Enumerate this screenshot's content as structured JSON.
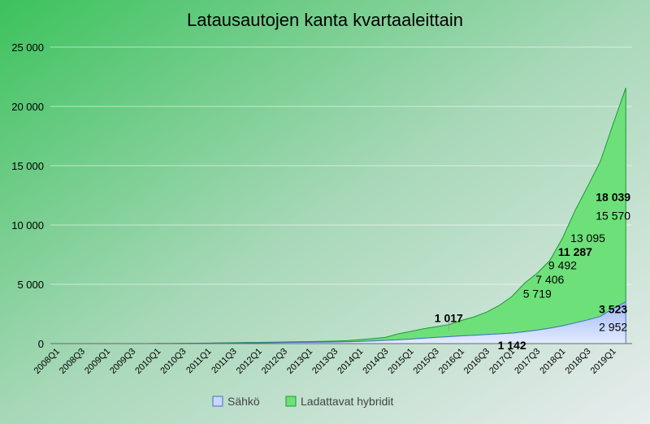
{
  "chart_data": {
    "type": "area",
    "title": "Latausautojen kanta kvartaaleittain",
    "xlabel": "",
    "ylabel": "",
    "ylim": [
      0,
      25000
    ],
    "yticks": [
      0,
      5000,
      10000,
      15000,
      20000,
      25000
    ],
    "ytick_labels": [
      "0",
      "5 000",
      "10 000",
      "15 000",
      "20 000",
      "25 000"
    ],
    "stacked": true,
    "grid": true,
    "legend_position": "bottom",
    "x": [
      "2008Q1",
      "2008Q2",
      "2008Q3",
      "2008Q4",
      "2009Q1",
      "2009Q2",
      "2009Q3",
      "2009Q4",
      "2010Q1",
      "2010Q2",
      "2010Q3",
      "2010Q4",
      "2011Q1",
      "2011Q2",
      "2011Q3",
      "2011Q4",
      "2012Q1",
      "2012Q2",
      "2012Q3",
      "2012Q4",
      "2013Q1",
      "2013Q2",
      "2013Q3",
      "2013Q4",
      "2014Q1",
      "2014Q2",
      "2014Q3",
      "2014Q4",
      "2015Q1",
      "2015Q2",
      "2015Q3",
      "2015Q4",
      "2016Q1",
      "2016Q2",
      "2016Q3",
      "2016Q4",
      "2017Q1",
      "2017Q2",
      "2017Q3",
      "2017Q4",
      "2018Q1",
      "2018Q2",
      "2018Q3",
      "2018Q4",
      "2019Q1",
      "2019Q2"
    ],
    "xtick_labels": [
      "2008Q1",
      "2008Q3",
      "2009Q1",
      "2009Q3",
      "2010Q1",
      "2010Q3",
      "2011Q1",
      "2011Q3",
      "2012Q1",
      "2012Q3",
      "2013Q1",
      "2013Q3",
      "2014Q1",
      "2014Q3",
      "2015Q1",
      "2015Q3",
      "2016Q1",
      "2016Q3",
      "2017Q1",
      "2017Q3",
      "2018Q1",
      "2018Q3",
      "2019Q1"
    ],
    "series": [
      {
        "name": "Sähkö",
        "color": "#c9d6ff",
        "stroke": "#4472c4",
        "values": [
          0,
          0,
          0,
          0,
          0,
          0,
          0,
          0,
          5,
          10,
          15,
          20,
          30,
          40,
          50,
          60,
          70,
          80,
          90,
          100,
          110,
          120,
          130,
          150,
          180,
          220,
          270,
          320,
          380,
          450,
          520,
          580,
          650,
          700,
          760,
          820,
          880,
          1000,
          1142,
          1300,
          1500,
          1750,
          2000,
          2300,
          2952,
          3523
        ]
      },
      {
        "name": "Ladattavat hybridit",
        "color": "#6ee07a",
        "stroke": "#1a9a30",
        "values": [
          0,
          0,
          0,
          0,
          0,
          0,
          0,
          0,
          0,
          0,
          5,
          10,
          15,
          20,
          25,
          30,
          35,
          40,
          45,
          50,
          60,
          70,
          80,
          100,
          150,
          200,
          250,
          500,
          650,
          800,
          900,
          1017,
          1300,
          1550,
          1900,
          2400,
          3100,
          4100,
          4800,
          5719,
          7406,
          9492,
          11287,
          13095,
          15570,
          18039
        ]
      }
    ],
    "annotations": [
      {
        "text": "1 017",
        "bold": true,
        "x": "2015Q4",
        "y": 2150
      },
      {
        "text": "1 142",
        "bold": true,
        "x": "2017Q1",
        "y": -120
      },
      {
        "text": "5 719",
        "bold": false,
        "x": "2017Q3",
        "y": 4200
      },
      {
        "text": "7 406",
        "bold": false,
        "x": "2017Q4",
        "y": 5400
      },
      {
        "text": "9 492",
        "bold": false,
        "x": "2018Q1",
        "y": 6600
      },
      {
        "text": "11 287",
        "bold": true,
        "x": "2018Q2",
        "y": 7750
      },
      {
        "text": "13 095",
        "bold": false,
        "x": "2018Q3",
        "y": 8900
      },
      {
        "text": "15 570",
        "bold": false,
        "x": "2019Q1",
        "y": 10800
      },
      {
        "text": "18 039",
        "bold": true,
        "x": "2019Q1",
        "y": 12350
      },
      {
        "text": "3 523",
        "bold": true,
        "x": "2019Q1",
        "y": 2900
      },
      {
        "text": "2 952",
        "bold": false,
        "x": "2019Q1",
        "y": 1400
      }
    ]
  }
}
